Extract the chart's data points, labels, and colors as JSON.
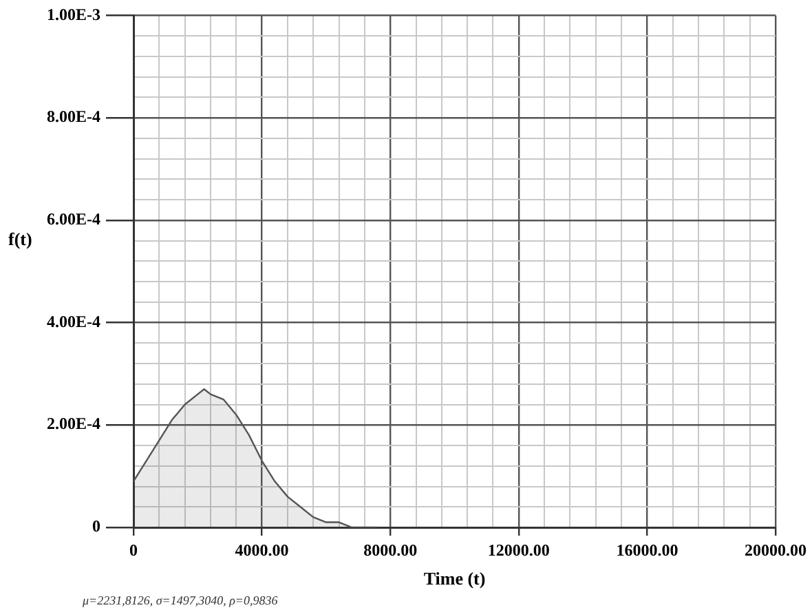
{
  "chart_data": {
    "type": "area",
    "xlabel": "Time (t)",
    "ylabel": "f(t)",
    "annotations": [
      "μ=2231,8126, σ=1497,3040, ρ=0,9836"
    ],
    "x": [
      0,
      400,
      800,
      1200,
      1600,
      2000,
      2200,
      2400,
      2800,
      3200,
      3600,
      4000,
      4400,
      4800,
      5200,
      5600,
      6000,
      6400,
      6800,
      7200,
      7600
    ],
    "series": [
      {
        "color": "#555555",
        "values": [
          9e-05,
          0.00013,
          0.00017,
          0.00021,
          0.00024,
          0.00026,
          0.00027,
          0.00026,
          0.00025,
          0.00022,
          0.00018,
          0.00013,
          9e-05,
          6e-05,
          4e-05,
          2e-05,
          1e-05,
          1e-05,
          0,
          0,
          0
        ]
      }
    ],
    "xlim": [
      0,
      20000
    ],
    "xticks": [
      0,
      {
        "value": 800,
        "label": null
      },
      {
        "value": 1600,
        "label": null
      },
      {
        "value": 2400,
        "label": null
      },
      {
        "value": 3200,
        "label": null
      },
      {
        "value": 4000,
        "label": "4000.00"
      },
      {
        "value": 4800,
        "label": null
      },
      {
        "value": 5600,
        "label": null
      },
      {
        "value": 6400,
        "label": null
      },
      {
        "value": 7200,
        "label": null
      },
      {
        "value": 8000,
        "label": "8000.00"
      },
      {
        "value": 8800,
        "label": null
      },
      {
        "value": 9600,
        "label": null
      },
      {
        "value": 10400,
        "label": null
      },
      {
        "value": 11200,
        "label": null
      },
      {
        "value": 12000,
        "label": "12000.00"
      },
      {
        "value": 12800,
        "label": null
      },
      {
        "value": 13600,
        "label": null
      },
      {
        "value": 14400,
        "label": null
      },
      {
        "value": 15200,
        "label": null
      },
      {
        "value": 16000,
        "label": "16000.00"
      },
      {
        "value": 16800,
        "label": null
      },
      {
        "value": 17600,
        "label": null
      },
      {
        "value": 18400,
        "label": null
      },
      {
        "value": 19200,
        "label": null
      },
      {
        "value": 20000,
        "label": "20000.00"
      }
    ],
    "ylim": [
      0,
      0.001
    ],
    "yticks": [
      0,
      {
        "value": 4e-05,
        "label": null
      },
      {
        "value": 8e-05,
        "label": null
      },
      {
        "value": 0.00012,
        "label": null
      },
      {
        "value": 0.00016,
        "label": null
      },
      {
        "value": 0.0002,
        "label": "2.00E-4"
      },
      {
        "value": 0.00024,
        "label": null
      },
      {
        "value": 0.00028,
        "label": null
      },
      {
        "value": 0.00032,
        "label": null
      },
      {
        "value": 0.00036,
        "label": null
      },
      {
        "value": 0.0004,
        "label": "4.00E-4"
      },
      {
        "value": 0.00044,
        "label": null
      },
      {
        "value": 0.00048,
        "label": null
      },
      {
        "value": 0.00052,
        "label": null
      },
      {
        "value": 0.00056,
        "label": null
      },
      {
        "value": 0.0006,
        "label": "6.00E-4"
      },
      {
        "value": 0.00064,
        "label": null
      },
      {
        "value": 0.00068,
        "label": null
      },
      {
        "value": 0.00072,
        "label": null
      },
      {
        "value": 0.00076,
        "label": null
      },
      {
        "value": 0.0008,
        "label": "8.00E-4"
      },
      {
        "value": 0.00084,
        "label": null
      },
      {
        "value": 0.00088,
        "label": null
      },
      {
        "value": 0.00092,
        "label": null
      },
      {
        "value": 0.00096,
        "label": null
      },
      {
        "value": 0.001,
        "label": "1.00E-3"
      }
    ],
    "grid": true,
    "legend": false,
    "marker": "none",
    "line_style": "solid"
  }
}
